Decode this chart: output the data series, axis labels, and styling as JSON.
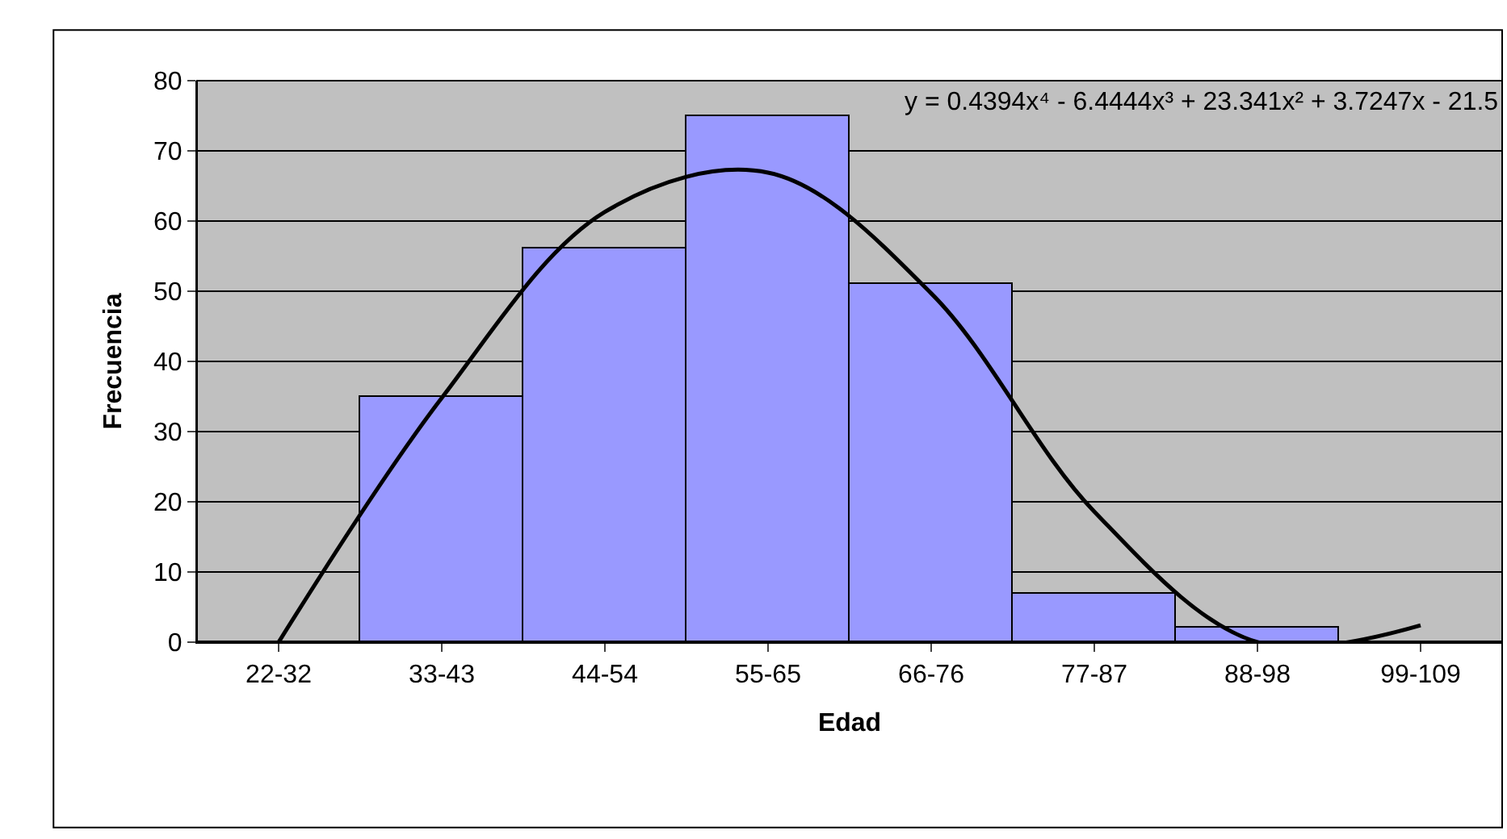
{
  "chart_data": {
    "type": "bar",
    "xlabel": "Edad",
    "ylabel": "Frecuencia",
    "categories": [
      "22-32",
      "33-43",
      "44-54",
      "55-65",
      "66-76",
      "77-87",
      "88-98",
      "99-109"
    ],
    "series": [
      {
        "color": "#9999ff",
        "values": [
          0,
          35,
          56,
          75,
          51,
          7,
          2,
          0
        ]
      },
      {
        "type": "line",
        "color": "#000000",
        "values": [
          0,
          34.8,
          61.3,
          66.9,
          49.7,
          18.6,
          0,
          2.4
        ]
      }
    ],
    "annotations": [
      "y = 0.4394x⁴ - 6.4444x³ + 23.341x² + 3.7247x - 21.5"
    ],
    "ylim": [
      0,
      80
    ],
    "yticks": [
      0,
      10,
      20,
      30,
      40,
      50,
      60,
      70,
      80
    ],
    "grid": "y"
  }
}
